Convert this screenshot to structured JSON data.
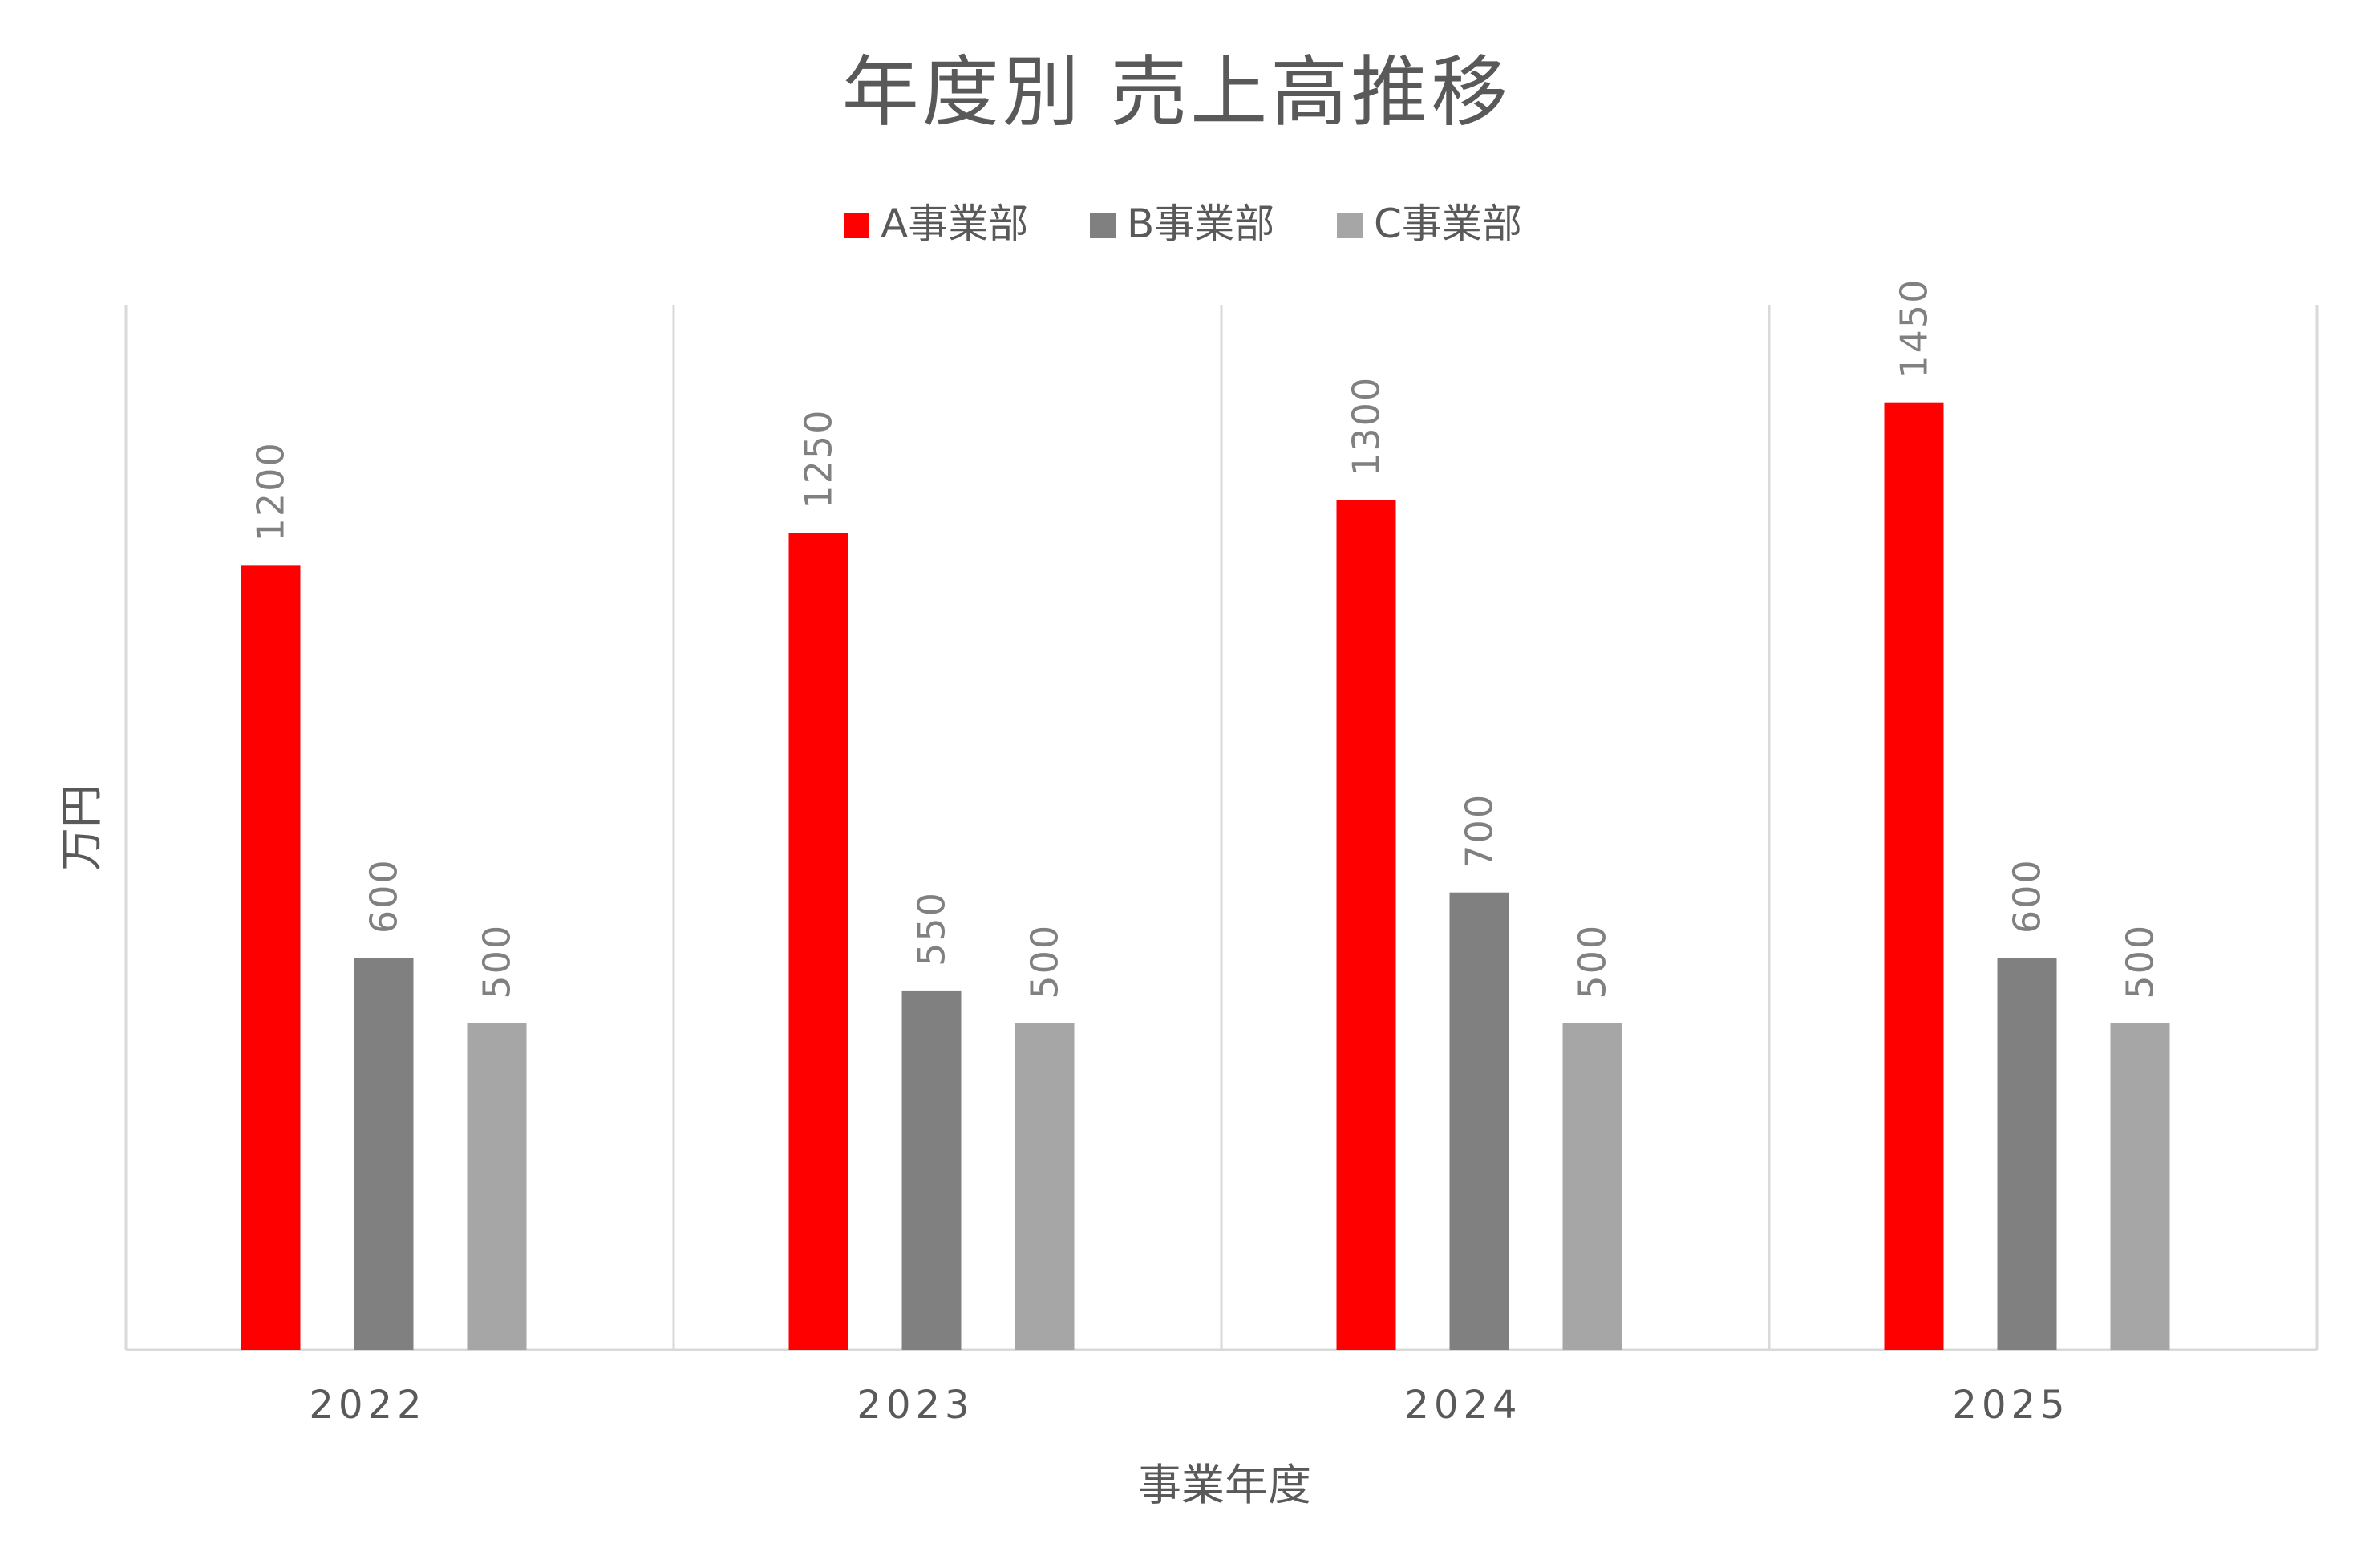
{
  "chart_data": {
    "type": "bar",
    "title": "年度別 売上高推移",
    "xlabel": "事業年度",
    "ylabel": "万円",
    "categories": [
      "2022",
      "2023",
      "2024",
      "2025"
    ],
    "series": [
      {
        "name": "A事業部",
        "color": "#ff0000",
        "values": [
          1200,
          1250,
          1300,
          1450
        ]
      },
      {
        "name": "B事業部",
        "color": "#808080",
        "values": [
          600,
          550,
          700,
          600
        ]
      },
      {
        "name": "C事業部",
        "color": "#a6a6a6",
        "values": [
          500,
          500,
          500,
          500
        ]
      }
    ],
    "ylim": [
      0,
      1600
    ],
    "grid": "vertical category separators",
    "legend": "top-center",
    "data_labels": true,
    "data_label_orientation": "rotated"
  }
}
